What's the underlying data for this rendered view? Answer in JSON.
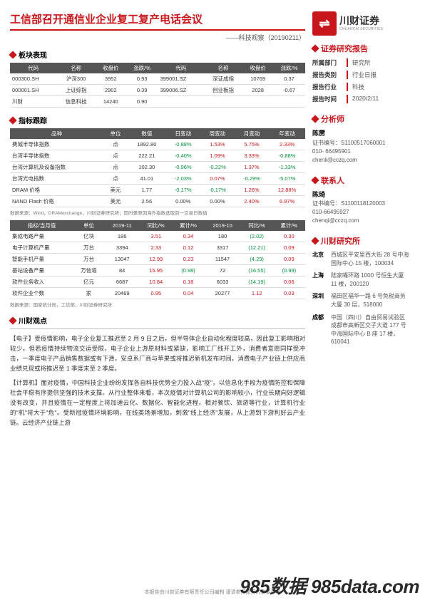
{
  "header": {
    "title": "工信部召开通信业企业复工复产电话会议",
    "subtitle": "——科技观察（20190211）",
    "brand_name": "川财证券",
    "brand_sub": "CHUANCAI SECURITIES",
    "logo_bg": "#c8161d",
    "logo_mark": "⇌"
  },
  "sections": {
    "perf": "板块表现",
    "track": "指标跟踪",
    "view": "川财观点"
  },
  "perf_table": {
    "headers": [
      "代码",
      "名称",
      "收盘价",
      "涨跌/%",
      "代码",
      "名称",
      "收盘价",
      "涨跌/%"
    ],
    "rows": [
      [
        "000300.SH",
        "沪深300",
        "3952",
        "0.93",
        "399001.SZ",
        "深证成指",
        "10769",
        "0.37"
      ],
      [
        "000001.SH",
        "上证综指",
        "2902",
        "0.39",
        "399006.SZ",
        "创业板指",
        "2028",
        "-0.67"
      ],
      [
        "川财",
        "信息科技",
        "14240",
        "0.90",
        "",
        "",
        "",
        ""
      ]
    ]
  },
  "track_table": {
    "headers": [
      "品种",
      "单位",
      "数值",
      "日变动",
      "周变动",
      "月变动",
      "年变动"
    ],
    "rows": [
      {
        "c": [
          "费城半导体指数",
          "点",
          "1892.80",
          "-0.88%",
          "1.53%",
          "5.75%",
          "2.33%"
        ],
        "cls": [
          "",
          "",
          "",
          "green",
          "red",
          "red",
          "red"
        ]
      },
      {
        "c": [
          "台湾半导体指数",
          "点",
          "222.21",
          "-0.40%",
          "1.09%",
          "3.33%",
          "-0.88%"
        ],
        "cls": [
          "",
          "",
          "",
          "green",
          "red",
          "red",
          "green"
        ]
      },
      {
        "c": [
          "台湾计算机及设备指数",
          "点",
          "102.30",
          "-0.96%",
          "-0.22%",
          "1.37%",
          "-1.33%"
        ],
        "cls": [
          "",
          "",
          "",
          "green",
          "green",
          "red",
          "green"
        ]
      },
      {
        "c": [
          "台湾光电指数",
          "点",
          "41.01",
          "-2.03%",
          "0.07%",
          "-0.29%",
          "-5.07%"
        ],
        "cls": [
          "",
          "",
          "",
          "green",
          "red",
          "green",
          "green"
        ]
      },
      {
        "c": [
          "DRAM 价格",
          "美元",
          "1.77",
          "-0.17%",
          "-0.17%",
          "1.26%",
          "12.88%"
        ],
        "cls": [
          "",
          "",
          "",
          "green",
          "green",
          "red",
          "red"
        ]
      },
      {
        "c": [
          "NAND Flash 价格",
          "美元",
          "2.56",
          "0.00%",
          "0.00%",
          "2.40%",
          "6.97%"
        ],
        "cls": [
          "",
          "",
          "",
          "",
          "",
          "red",
          "red"
        ]
      }
    ],
    "source": "数据来源：Wind，DRAMexchange，川财证券研究所；因时差原因海外指数选取前一交易日数值"
  },
  "month_table": {
    "headers": [
      "指标/当月值",
      "单位",
      "2019-11",
      "同比/%",
      "累计/%",
      "2019-10",
      "同比/%",
      "累计/%"
    ],
    "rows": [
      {
        "c": [
          "集成电路产量",
          "亿块",
          "186",
          "3.51",
          "0.34",
          "180",
          "(2.02)",
          "0.30"
        ],
        "cls": [
          "",
          "",
          "",
          "red",
          "red",
          "",
          "green",
          "red"
        ]
      },
      {
        "c": [
          "电子计算机产量",
          "万台",
          "3394",
          "2.33",
          "0.12",
          "3317",
          "(12.21)",
          "0.09"
        ],
        "cls": [
          "",
          "",
          "",
          "red",
          "red",
          "",
          "green",
          "red"
        ]
      },
      {
        "c": [
          "智能手机产量",
          "万台",
          "13047",
          "12.99",
          "0.23",
          "11547",
          "(4.29)",
          "0.09"
        ],
        "cls": [
          "",
          "",
          "",
          "red",
          "red",
          "",
          "green",
          "red"
        ]
      },
      {
        "c": [
          "基站设备产量",
          "万信道",
          "84",
          "15.95",
          "(0.98)",
          "72",
          "(16.55)",
          "(0.99)"
        ],
        "cls": [
          "",
          "",
          "",
          "red",
          "green",
          "",
          "green",
          "green"
        ]
      },
      {
        "c": [
          "软件业务收入",
          "亿元",
          "6687",
          "10.84",
          "0.18",
          "6033",
          "(14.19)",
          "0.06"
        ],
        "cls": [
          "",
          "",
          "",
          "red",
          "red",
          "",
          "green",
          "red"
        ]
      },
      {
        "c": [
          "软件企业个数",
          "家",
          "20469",
          "0.95",
          "0.04",
          "20277",
          "1.12",
          "0.03"
        ],
        "cls": [
          "",
          "",
          "",
          "red",
          "red",
          "",
          "red",
          "red"
        ]
      }
    ],
    "source": "数据来源：国家统计局，工信部，川财证券研究所"
  },
  "view_paras": [
    "【电子】受疫情影响，电子企业复工推迟至 2 月 9 日之后，但半导体企业自动化程度较高，因此复工影响相对较少。但若疫情持续物流交运受限，电子企业上游原材料或紧缺，影响工厂线开工外，消费者意愿同样受冲击，一季度电子产品销售数据或有下滑，安卓系厂商与苹果或将推迟新机发布时间，消费电子产业链上供应商业绩兑现或将推迟至 1 季度末至 2 季度。",
    "【计算机】面对疫情，中国科技企业纷纷发挥各自科技优势全力投入战\"疫\"，以信息化手段为疫情防控和保障社会平稳有序提供坚强的技术支撑。从行业整体来看，本次疫情对计算机公司的影响较小，行业长期向好逻辑没有改变，并且疫情在一定程度上将加速云化、数据化、智能化进程。相对餐饮、旅游等行业，计算机行业的\"机\"将大于\"危\"。受新冠疫情环境影响，在线类场景增加，刺激\"线上经济\"发展，从上游到下游利好云产业链。云经济产业链上游"
  ],
  "sidebar": {
    "report_head": "证券研究报告",
    "info": [
      {
        "k": "所属部门",
        "v": "研究所"
      },
      {
        "k": "报告类别",
        "v": "行业日报"
      },
      {
        "k": "报告行业",
        "v": "科技"
      },
      {
        "k": "报告时间",
        "v": "2020/2/11"
      }
    ],
    "analyst_head": "分析师",
    "analyst": {
      "name": "陈雳",
      "cert": "证书编号：S1100517060001",
      "tel": "010- 66495901",
      "mail": "chenli@cczq.com"
    },
    "contact_head": "联系人",
    "contact": {
      "name": "陈琦",
      "cert": "证书编号：S1100118120003",
      "tel": "010-66495927",
      "mail": "chenqi@cczq.com"
    },
    "inst_head": "川财研究所",
    "locations": [
      {
        "city": "北京",
        "addr": "西城区平安里西大街 28 号中海国际中心 15 楼，100034"
      },
      {
        "city": "上海",
        "addr": "陆家嘴环路 1000 号恒生大厦 11 楼，200120"
      },
      {
        "city": "深圳",
        "addr": "福田区福华一路 6 号免税商务大厦 30 层，518000"
      },
      {
        "city": "成都",
        "addr": "中国（四川）自由贸易试验区成都市高新区交子大道 177 号中海国际中心 B 座 17 楼，610041"
      }
    ]
  },
  "footer": "本报告由川财证券有限责任公司编制  谨请参阅尾页的重要声明",
  "watermark": "985数据 985data.com"
}
